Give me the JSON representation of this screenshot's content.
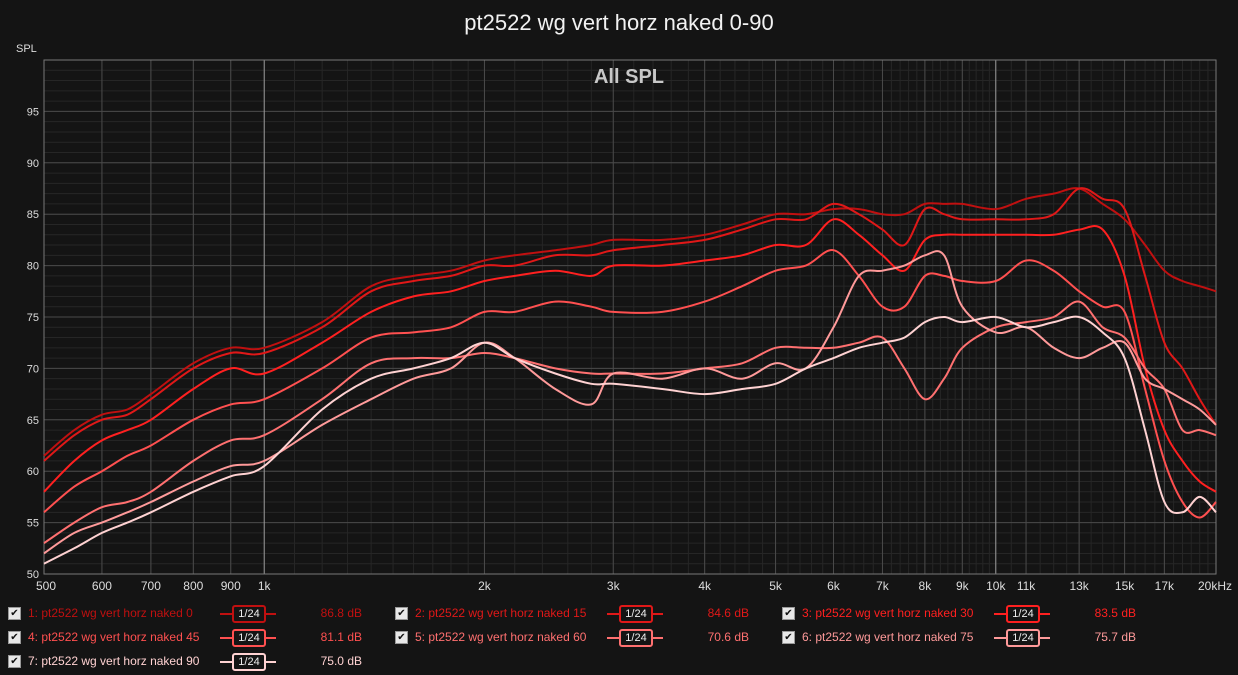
{
  "title": "pt2522 wg vert horz naked 0-90",
  "chart_data": {
    "type": "line",
    "title": "pt2522 wg vert horz naked 0-90",
    "subtitle": "All SPL",
    "ylabel": "SPL",
    "xlabel": "",
    "x_scale": "log",
    "xlim": [
      500,
      20000
    ],
    "ylim": [
      50,
      100
    ],
    "x_ticks": [
      {
        "value": 500,
        "label": "500"
      },
      {
        "value": 600,
        "label": "600"
      },
      {
        "value": 700,
        "label": "700"
      },
      {
        "value": 800,
        "label": "800"
      },
      {
        "value": 900,
        "label": "900"
      },
      {
        "value": 1000,
        "label": "1k"
      },
      {
        "value": 2000,
        "label": "2k"
      },
      {
        "value": 3000,
        "label": "3k"
      },
      {
        "value": 4000,
        "label": "4k"
      },
      {
        "value": 5000,
        "label": "5k"
      },
      {
        "value": 6000,
        "label": "6k"
      },
      {
        "value": 7000,
        "label": "7k"
      },
      {
        "value": 8000,
        "label": "8k"
      },
      {
        "value": 9000,
        "label": "9k"
      },
      {
        "value": 10000,
        "label": "10k"
      },
      {
        "value": 11000,
        "label": "11k"
      },
      {
        "value": 13000,
        "label": "13k"
      },
      {
        "value": 15000,
        "label": "15k"
      },
      {
        "value": 17000,
        "label": "17k"
      },
      {
        "value": 20000,
        "label": "20kHz"
      }
    ],
    "y_ticks": [
      50,
      55,
      60,
      65,
      70,
      75,
      80,
      85,
      90,
      95
    ],
    "grid": true,
    "legend_position": "bottom",
    "x": [
      500,
      550,
      600,
      650,
      700,
      800,
      900,
      1000,
      1200,
      1400,
      1600,
      1800,
      2000,
      2200,
      2500,
      2800,
      3000,
      3500,
      4000,
      4500,
      5000,
      5500,
      6000,
      6500,
      7000,
      7500,
      8000,
      8500,
      9000,
      10000,
      11000,
      12000,
      13000,
      14000,
      15000,
      16000,
      17000,
      18000,
      19000,
      20000
    ],
    "series": [
      {
        "name": "1: pt2522 wg vert horz naked 0",
        "smoothing": "1/24",
        "level": "86.8 dB",
        "color": "#c01010",
        "values": [
          61.5,
          64,
          65.5,
          66,
          67.5,
          70.5,
          72,
          72,
          74.5,
          78,
          79,
          79.5,
          80.5,
          81,
          81.5,
          82,
          82.5,
          82.5,
          83,
          84,
          85,
          85,
          85.5,
          85.5,
          85,
          85,
          86,
          86,
          86,
          85.5,
          86.5,
          87,
          87.5,
          86,
          84.5,
          82,
          79.5,
          78.5,
          78,
          77.5
        ]
      },
      {
        "name": "2: pt2522 wg vert horz naked 15",
        "smoothing": "1/24",
        "level": "84.6 dB",
        "color": "#e01818",
        "values": [
          61,
          63.5,
          65,
          65.5,
          67,
          70,
          71.5,
          71.5,
          74,
          77.5,
          78.5,
          79,
          80,
          80,
          81,
          81,
          81.5,
          82,
          82.5,
          83.5,
          84.5,
          84.5,
          86,
          85,
          83.5,
          82,
          85.5,
          85,
          84.5,
          84.5,
          84.5,
          85,
          87.5,
          86.5,
          85.5,
          79,
          72.5,
          70,
          67,
          64.5
        ]
      },
      {
        "name": "3: pt2522 wg vert horz naked 30",
        "smoothing": "1/24",
        "level": "83.5 dB",
        "color": "#ff2020",
        "values": [
          58,
          61,
          63,
          64,
          65,
          68,
          70,
          69.5,
          72.5,
          75.5,
          77,
          77.5,
          78.5,
          79,
          79.5,
          79,
          80,
          80,
          80.5,
          81,
          82,
          82,
          84.5,
          83,
          81,
          79.5,
          82.5,
          83,
          83,
          83,
          83,
          83,
          83.5,
          83.5,
          79,
          70,
          64,
          61,
          59,
          58
        ]
      },
      {
        "name": "4: pt2522 wg vert horz naked 45",
        "smoothing": "1/24",
        "level": "81.1 dB",
        "color": "#ff5050",
        "values": [
          56,
          58.5,
          60,
          61.5,
          62.5,
          65,
          66.5,
          67,
          70,
          73,
          73.5,
          74,
          75.5,
          75.5,
          76.5,
          76,
          75.5,
          75.5,
          76.5,
          78,
          79.5,
          80,
          81.5,
          79,
          76,
          76,
          79,
          79,
          78.5,
          78.5,
          80.5,
          79.5,
          77.5,
          76,
          75.5,
          68,
          61,
          57,
          55.5,
          57
        ]
      },
      {
        "name": "5: pt2522 wg vert horz naked 60",
        "smoothing": "1/24",
        "level": "70.6 dB",
        "color": "#ff7070",
        "values": [
          53,
          55,
          56.5,
          57,
          58,
          61,
          63,
          63.5,
          67,
          70.5,
          71,
          71,
          71.5,
          71,
          70,
          69.5,
          69.5,
          69.5,
          70,
          70.5,
          72,
          72,
          72,
          72.5,
          73,
          70,
          67,
          69,
          72,
          74,
          74.5,
          75,
          76.5,
          74,
          73,
          70,
          68,
          64,
          64,
          63.5
        ]
      },
      {
        "name": "6: pt2522 wg vert horz naked 75",
        "smoothing": "1/24",
        "level": "75.7 dB",
        "color": "#ff9a9a",
        "values": [
          52,
          54,
          55,
          56,
          57,
          59,
          60.5,
          61,
          64.5,
          67,
          69,
          70,
          72.5,
          71,
          68,
          66.5,
          69.5,
          69,
          70,
          69,
          70.5,
          70,
          74,
          79,
          79.5,
          80,
          81,
          81,
          76,
          73.5,
          74,
          72,
          71,
          72,
          72.5,
          69,
          68,
          67,
          66,
          64.5
        ]
      },
      {
        "name": "7: pt2522 wg vert horz naked 90",
        "smoothing": "1/24",
        "level": "75.0 dB",
        "color": "#ffd2d2",
        "values": [
          51,
          52.5,
          54,
          55,
          56,
          58,
          59.5,
          60.5,
          66,
          69,
          70,
          71,
          72.5,
          71,
          69.5,
          68.5,
          68.5,
          68,
          67.5,
          68,
          68.5,
          70,
          71,
          72,
          72.5,
          73,
          74.5,
          75,
          74.5,
          75,
          74,
          74.5,
          75,
          73.5,
          71,
          64,
          57,
          56,
          57.5,
          56
        ]
      }
    ]
  }
}
